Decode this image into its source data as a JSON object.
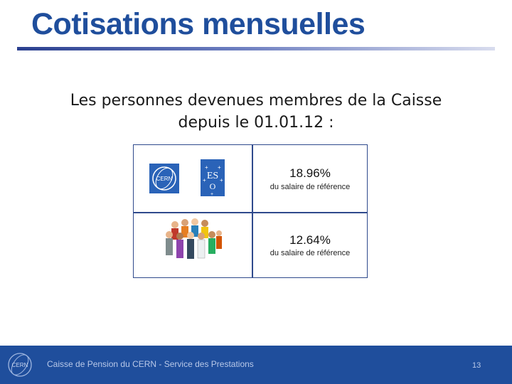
{
  "slide": {
    "title": "Cotisations mensuelles",
    "subtitle_line1": "Les personnes devenues membres de la Caisse",
    "subtitle_line2": "depuis le 01.01.12 :"
  },
  "contributions": [
    {
      "payer_icon": "cern-esi-logos-icon",
      "rate": "18.96%",
      "note": "du salaire de référence"
    },
    {
      "payer_icon": "people-group-icon",
      "rate": "12.64%",
      "note": "du salaire de référence"
    }
  ],
  "footer": {
    "text": "Caisse de Pension du CERN - Service des Prestations",
    "page_number": "13",
    "logo_icon": "cern-logo-icon"
  },
  "colors": {
    "title": "#1f4e9c",
    "footer_bg": "#1f4e9c",
    "table_border": "#2f4a8c"
  }
}
